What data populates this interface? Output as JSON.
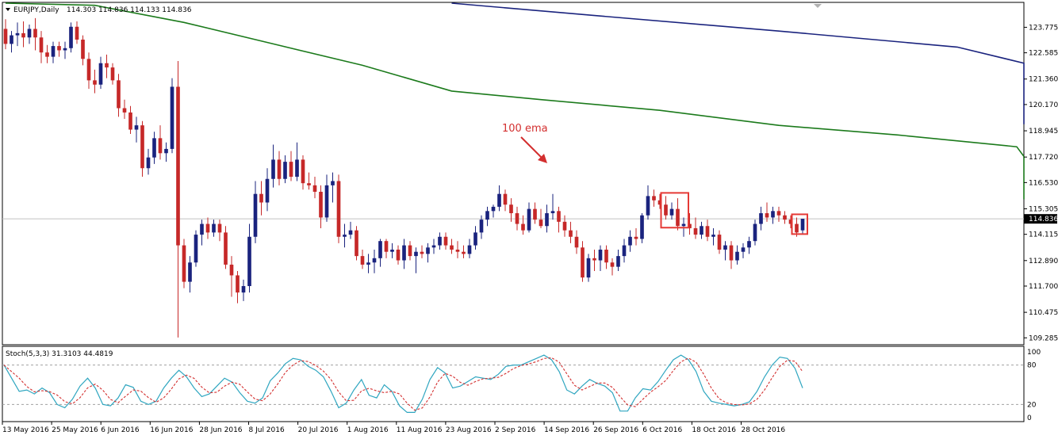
{
  "header": {
    "symbol_label": "EURJPY,Daily",
    "ohlc_label": "114.303 114.836 114.133 114.836"
  },
  "indicator": {
    "label": "Stoch(5,3,3) 31.3103 44.4819",
    "scale_labels": [
      "100",
      "80",
      "20",
      "0"
    ],
    "levels": [
      80,
      20
    ]
  },
  "annotation": {
    "text": "100 ema",
    "color": "#d32f2f"
  },
  "colors": {
    "bull": "#1a237e",
    "bear": "#c62828",
    "ema100": "#1b7a1b",
    "ema200": "#1a237e",
    "stoch_main": "#2fa6c0",
    "stoch_signal": "#d32f2f",
    "highlight": "#e53935",
    "current_price_line": "#c0c0c0",
    "current_price_bg": "#000000"
  },
  "price_axis": {
    "ticks": [
      "123.775",
      "122.585",
      "121.360",
      "120.170",
      "118.945",
      "117.720",
      "116.530",
      "115.305",
      "114.115",
      "112.890",
      "111.700",
      "110.475",
      "109.285"
    ],
    "current_price": "114.836"
  },
  "time_axis": {
    "labels": [
      "13 May 2016",
      "25 May 2016",
      "6 Jun 2016",
      "16 Jun 2016",
      "28 Jun 2016",
      "8 Jul 2016",
      "20 Jul 2016",
      "1 Aug 2016",
      "11 Aug 2016",
      "23 Aug 2016",
      "2 Sep 2016",
      "14 Sep 2016",
      "26 Sep 2016",
      "6 Oct 2016",
      "18 Oct 2016",
      "28 Oct 2016"
    ]
  },
  "chart_data": {
    "type": "candlestick",
    "symbol": "EURJPY",
    "timeframe": "Daily",
    "ylim": [
      109.0,
      124.9
    ],
    "candles": [
      {
        "o": 123.7,
        "h": 124.15,
        "l": 122.75,
        "c": 123.0
      },
      {
        "o": 123.0,
        "h": 123.6,
        "l": 122.6,
        "c": 123.4
      },
      {
        "o": 123.4,
        "h": 124.0,
        "l": 122.9,
        "c": 123.5
      },
      {
        "o": 123.5,
        "h": 124.05,
        "l": 122.85,
        "c": 123.3
      },
      {
        "o": 123.3,
        "h": 123.9,
        "l": 123.0,
        "c": 123.7
      },
      {
        "o": 123.7,
        "h": 124.2,
        "l": 122.7,
        "c": 123.3
      },
      {
        "o": 123.3,
        "h": 123.6,
        "l": 122.1,
        "c": 122.6
      },
      {
        "o": 122.6,
        "h": 122.95,
        "l": 122.1,
        "c": 122.4
      },
      {
        "o": 122.4,
        "h": 123.1,
        "l": 122.1,
        "c": 122.9
      },
      {
        "o": 122.9,
        "h": 123.1,
        "l": 122.4,
        "c": 122.7
      },
      {
        "o": 122.7,
        "h": 123.1,
        "l": 122.3,
        "c": 122.8
      },
      {
        "o": 122.8,
        "h": 124.0,
        "l": 122.6,
        "c": 123.8
      },
      {
        "o": 123.8,
        "h": 124.05,
        "l": 123.0,
        "c": 123.2
      },
      {
        "o": 123.2,
        "h": 123.4,
        "l": 122.0,
        "c": 122.3
      },
      {
        "o": 122.3,
        "h": 122.6,
        "l": 120.9,
        "c": 121.3
      },
      {
        "o": 121.3,
        "h": 121.8,
        "l": 120.7,
        "c": 121.1
      },
      {
        "o": 121.1,
        "h": 122.4,
        "l": 120.9,
        "c": 122.1
      },
      {
        "o": 122.1,
        "h": 122.5,
        "l": 121.4,
        "c": 121.9
      },
      {
        "o": 121.9,
        "h": 122.1,
        "l": 121.1,
        "c": 121.3
      },
      {
        "o": 121.3,
        "h": 121.6,
        "l": 119.6,
        "c": 120.0
      },
      {
        "o": 120.0,
        "h": 120.4,
        "l": 119.5,
        "c": 119.8
      },
      {
        "o": 119.8,
        "h": 120.1,
        "l": 118.8,
        "c": 119.0
      },
      {
        "o": 119.0,
        "h": 119.6,
        "l": 118.4,
        "c": 119.2
      },
      {
        "o": 119.2,
        "h": 119.4,
        "l": 116.8,
        "c": 117.2
      },
      {
        "o": 117.2,
        "h": 118.1,
        "l": 116.9,
        "c": 117.7
      },
      {
        "o": 117.7,
        "h": 118.9,
        "l": 117.4,
        "c": 118.6
      },
      {
        "o": 118.6,
        "h": 119.2,
        "l": 117.6,
        "c": 117.9
      },
      {
        "o": 117.9,
        "h": 118.4,
        "l": 117.5,
        "c": 118.1
      },
      {
        "o": 118.1,
        "h": 121.4,
        "l": 117.9,
        "c": 121.0
      },
      {
        "o": 121.0,
        "h": 122.2,
        "l": 109.3,
        "c": 113.6
      },
      {
        "o": 113.6,
        "h": 113.9,
        "l": 111.6,
        "c": 111.9
      },
      {
        "o": 111.9,
        "h": 113.1,
        "l": 111.4,
        "c": 112.8
      },
      {
        "o": 112.8,
        "h": 114.3,
        "l": 112.6,
        "c": 114.1
      },
      {
        "o": 114.1,
        "h": 114.8,
        "l": 113.6,
        "c": 114.6
      },
      {
        "o": 114.6,
        "h": 114.9,
        "l": 113.9,
        "c": 114.2
      },
      {
        "o": 114.2,
        "h": 114.8,
        "l": 114.0,
        "c": 114.6
      },
      {
        "o": 114.6,
        "h": 114.8,
        "l": 113.8,
        "c": 114.2
      },
      {
        "o": 114.2,
        "h": 114.5,
        "l": 112.5,
        "c": 112.7
      },
      {
        "o": 112.7,
        "h": 113.1,
        "l": 111.2,
        "c": 112.2
      },
      {
        "o": 112.2,
        "h": 112.4,
        "l": 110.9,
        "c": 111.4
      },
      {
        "o": 111.4,
        "h": 112.0,
        "l": 111.0,
        "c": 111.7
      },
      {
        "o": 111.7,
        "h": 114.6,
        "l": 111.4,
        "c": 114.0
      },
      {
        "o": 114.0,
        "h": 116.6,
        "l": 113.7,
        "c": 116.0
      },
      {
        "o": 116.0,
        "h": 116.6,
        "l": 115.0,
        "c": 115.6
      },
      {
        "o": 115.6,
        "h": 117.2,
        "l": 115.2,
        "c": 116.7
      },
      {
        "o": 116.7,
        "h": 118.3,
        "l": 116.3,
        "c": 117.6
      },
      {
        "o": 117.6,
        "h": 118.0,
        "l": 116.4,
        "c": 116.7
      },
      {
        "o": 116.7,
        "h": 117.8,
        "l": 116.5,
        "c": 117.5
      },
      {
        "o": 117.5,
        "h": 118.0,
        "l": 116.6,
        "c": 116.8
      },
      {
        "o": 116.8,
        "h": 118.4,
        "l": 116.6,
        "c": 117.6
      },
      {
        "o": 117.6,
        "h": 117.8,
        "l": 116.2,
        "c": 116.5
      },
      {
        "o": 116.5,
        "h": 117.0,
        "l": 116.2,
        "c": 116.4
      },
      {
        "o": 116.4,
        "h": 116.8,
        "l": 115.8,
        "c": 116.1
      },
      {
        "o": 116.1,
        "h": 116.4,
        "l": 114.4,
        "c": 114.9
      },
      {
        "o": 114.9,
        "h": 116.9,
        "l": 114.7,
        "c": 116.4
      },
      {
        "o": 116.4,
        "h": 117.0,
        "l": 115.6,
        "c": 116.6
      },
      {
        "o": 116.6,
        "h": 116.9,
        "l": 113.7,
        "c": 114.0
      },
      {
        "o": 114.0,
        "h": 114.6,
        "l": 113.5,
        "c": 114.1
      },
      {
        "o": 114.1,
        "h": 114.7,
        "l": 113.9,
        "c": 114.3
      },
      {
        "o": 114.3,
        "h": 114.5,
        "l": 112.9,
        "c": 113.1
      },
      {
        "o": 113.1,
        "h": 113.4,
        "l": 112.5,
        "c": 112.7
      },
      {
        "o": 112.7,
        "h": 113.2,
        "l": 112.3,
        "c": 112.8
      },
      {
        "o": 112.8,
        "h": 113.4,
        "l": 112.3,
        "c": 113.0
      },
      {
        "o": 113.0,
        "h": 113.9,
        "l": 112.6,
        "c": 113.8
      },
      {
        "o": 113.8,
        "h": 113.9,
        "l": 113.0,
        "c": 113.3
      },
      {
        "o": 113.3,
        "h": 113.7,
        "l": 113.0,
        "c": 113.4
      },
      {
        "o": 113.4,
        "h": 113.6,
        "l": 112.7,
        "c": 112.9
      },
      {
        "o": 112.9,
        "h": 113.9,
        "l": 112.5,
        "c": 113.6
      },
      {
        "o": 113.6,
        "h": 113.8,
        "l": 112.9,
        "c": 113.1
      },
      {
        "o": 113.1,
        "h": 113.5,
        "l": 112.3,
        "c": 113.3
      },
      {
        "o": 113.3,
        "h": 113.6,
        "l": 113.0,
        "c": 113.2
      },
      {
        "o": 113.2,
        "h": 113.7,
        "l": 112.8,
        "c": 113.5
      },
      {
        "o": 113.5,
        "h": 113.9,
        "l": 113.2,
        "c": 113.6
      },
      {
        "o": 113.6,
        "h": 114.2,
        "l": 113.4,
        "c": 114.0
      },
      {
        "o": 114.0,
        "h": 114.2,
        "l": 113.4,
        "c": 113.6
      },
      {
        "o": 113.6,
        "h": 113.9,
        "l": 113.2,
        "c": 113.4
      },
      {
        "o": 113.4,
        "h": 113.8,
        "l": 113.0,
        "c": 113.3
      },
      {
        "o": 113.3,
        "h": 113.6,
        "l": 113.0,
        "c": 113.2
      },
      {
        "o": 113.2,
        "h": 113.9,
        "l": 113.0,
        "c": 113.6
      },
      {
        "o": 113.6,
        "h": 114.5,
        "l": 113.4,
        "c": 114.2
      },
      {
        "o": 114.2,
        "h": 115.0,
        "l": 113.9,
        "c": 114.8
      },
      {
        "o": 114.8,
        "h": 115.4,
        "l": 114.5,
        "c": 115.2
      },
      {
        "o": 115.2,
        "h": 115.5,
        "l": 114.9,
        "c": 115.4
      },
      {
        "o": 115.4,
        "h": 116.4,
        "l": 115.2,
        "c": 116.0
      },
      {
        "o": 116.0,
        "h": 116.2,
        "l": 115.2,
        "c": 115.5
      },
      {
        "o": 115.5,
        "h": 115.8,
        "l": 114.7,
        "c": 115.1
      },
      {
        "o": 115.1,
        "h": 115.4,
        "l": 114.3,
        "c": 114.6
      },
      {
        "o": 114.6,
        "h": 115.0,
        "l": 114.1,
        "c": 114.3
      },
      {
        "o": 114.3,
        "h": 115.6,
        "l": 114.2,
        "c": 115.3
      },
      {
        "o": 115.3,
        "h": 115.6,
        "l": 114.6,
        "c": 114.8
      },
      {
        "o": 114.8,
        "h": 115.3,
        "l": 114.4,
        "c": 114.5
      },
      {
        "o": 114.5,
        "h": 115.5,
        "l": 114.2,
        "c": 115.1
      },
      {
        "o": 115.1,
        "h": 116.0,
        "l": 114.8,
        "c": 115.2
      },
      {
        "o": 115.2,
        "h": 115.4,
        "l": 114.2,
        "c": 114.7
      },
      {
        "o": 114.7,
        "h": 115.0,
        "l": 114.0,
        "c": 114.3
      },
      {
        "o": 114.3,
        "h": 114.7,
        "l": 113.7,
        "c": 114.0
      },
      {
        "o": 114.0,
        "h": 114.3,
        "l": 113.2,
        "c": 113.5
      },
      {
        "o": 113.5,
        "h": 113.8,
        "l": 111.9,
        "c": 112.1
      },
      {
        "o": 112.1,
        "h": 113.2,
        "l": 111.9,
        "c": 113.0
      },
      {
        "o": 113.0,
        "h": 113.4,
        "l": 112.4,
        "c": 112.9
      },
      {
        "o": 112.9,
        "h": 113.6,
        "l": 112.4,
        "c": 113.4
      },
      {
        "o": 113.4,
        "h": 113.6,
        "l": 112.5,
        "c": 112.8
      },
      {
        "o": 112.8,
        "h": 113.0,
        "l": 112.2,
        "c": 112.6
      },
      {
        "o": 112.6,
        "h": 113.4,
        "l": 112.4,
        "c": 113.1
      },
      {
        "o": 113.1,
        "h": 113.9,
        "l": 112.8,
        "c": 113.6
      },
      {
        "o": 113.6,
        "h": 114.3,
        "l": 113.3,
        "c": 114.0
      },
      {
        "o": 114.0,
        "h": 114.4,
        "l": 113.6,
        "c": 113.9
      },
      {
        "o": 113.9,
        "h": 115.1,
        "l": 113.7,
        "c": 115.0
      },
      {
        "o": 115.0,
        "h": 116.4,
        "l": 114.8,
        "c": 115.9
      },
      {
        "o": 115.9,
        "h": 116.2,
        "l": 115.4,
        "c": 115.7
      },
      {
        "o": 115.7,
        "h": 116.0,
        "l": 115.3,
        "c": 115.5
      },
      {
        "o": 115.5,
        "h": 115.9,
        "l": 114.8,
        "c": 115.0
      },
      {
        "o": 115.0,
        "h": 115.6,
        "l": 114.8,
        "c": 115.3
      },
      {
        "o": 115.3,
        "h": 115.8,
        "l": 114.3,
        "c": 114.5
      },
      {
        "o": 114.5,
        "h": 114.9,
        "l": 114.0,
        "c": 114.6
      },
      {
        "o": 114.6,
        "h": 115.1,
        "l": 114.1,
        "c": 114.4
      },
      {
        "o": 114.4,
        "h": 114.9,
        "l": 113.9,
        "c": 114.1
      },
      {
        "o": 114.1,
        "h": 114.7,
        "l": 113.9,
        "c": 114.5
      },
      {
        "o": 114.5,
        "h": 114.8,
        "l": 113.8,
        "c": 114.0
      },
      {
        "o": 114.0,
        "h": 114.4,
        "l": 113.6,
        "c": 114.1
      },
      {
        "o": 114.1,
        "h": 114.3,
        "l": 113.2,
        "c": 113.4
      },
      {
        "o": 113.4,
        "h": 113.8,
        "l": 112.9,
        "c": 113.6
      },
      {
        "o": 113.6,
        "h": 113.8,
        "l": 112.5,
        "c": 112.9
      },
      {
        "o": 112.9,
        "h": 113.6,
        "l": 112.7,
        "c": 113.3
      },
      {
        "o": 113.3,
        "h": 113.7,
        "l": 113.0,
        "c": 113.5
      },
      {
        "o": 113.5,
        "h": 114.0,
        "l": 113.2,
        "c": 113.8
      },
      {
        "o": 113.8,
        "h": 114.8,
        "l": 113.6,
        "c": 114.6
      },
      {
        "o": 114.6,
        "h": 115.4,
        "l": 114.3,
        "c": 115.1
      },
      {
        "o": 115.1,
        "h": 115.6,
        "l": 114.7,
        "c": 114.9
      },
      {
        "o": 114.9,
        "h": 115.4,
        "l": 114.6,
        "c": 115.2
      },
      {
        "o": 115.2,
        "h": 115.4,
        "l": 114.7,
        "c": 115.0
      },
      {
        "o": 115.0,
        "h": 115.2,
        "l": 114.6,
        "c": 114.8
      },
      {
        "o": 114.8,
        "h": 115.0,
        "l": 114.4,
        "c": 114.6
      },
      {
        "o": 114.6,
        "h": 114.9,
        "l": 114.0,
        "c": 114.2
      },
      {
        "o": 114.3,
        "h": 114.84,
        "l": 114.13,
        "c": 114.84
      }
    ],
    "ema100": [
      [
        0,
        124.9
      ],
      [
        15,
        124.8
      ],
      [
        30,
        124.0
      ],
      [
        45,
        123.0
      ],
      [
        60,
        122.0
      ],
      [
        75,
        120.8
      ],
      [
        90,
        120.4
      ],
      [
        110,
        119.9
      ],
      [
        130,
        119.2
      ],
      [
        150,
        118.75
      ],
      [
        170,
        118.2
      ],
      [
        190,
        117.75
      ],
      [
        210,
        117.35
      ],
      [
        230,
        117.0
      ],
      [
        250,
        116.7
      ],
      [
        270,
        116.45
      ],
      [
        290,
        116.2
      ],
      [
        310,
        115.95
      ],
      [
        330,
        115.75
      ]
    ],
    "ema200": [
      [
        75,
        124.9
      ],
      [
        100,
        124.3
      ],
      [
        130,
        123.6
      ],
      [
        160,
        122.85
      ],
      [
        190,
        122.1
      ],
      [
        220,
        121.4
      ],
      [
        250,
        120.8
      ],
      [
        280,
        120.3
      ],
      [
        310,
        119.6
      ],
      [
        330,
        119.25
      ]
    ],
    "stoch_main": [
      80,
      60,
      40,
      42,
      36,
      45,
      38,
      20,
      15,
      28,
      48,
      60,
      45,
      20,
      18,
      30,
      50,
      46,
      25,
      20,
      25,
      45,
      60,
      72,
      62,
      45,
      32,
      36,
      48,
      60,
      54,
      38,
      25,
      22,
      30,
      56,
      68,
      82,
      90,
      88,
      78,
      72,
      62,
      40,
      15,
      22,
      42,
      58,
      34,
      30,
      50,
      40,
      18,
      8,
      8,
      28,
      58,
      76,
      68,
      45,
      48,
      55,
      62,
      60,
      58,
      66,
      78,
      80,
      80,
      85,
      90,
      95,
      88,
      70,
      42,
      36,
      48,
      58,
      52,
      48,
      38,
      10,
      10,
      30,
      44,
      42,
      55,
      72,
      88,
      95,
      88,
      70,
      40,
      25,
      22,
      20,
      18,
      20,
      24,
      40,
      62,
      80,
      92,
      90,
      75,
      45
    ]
  }
}
